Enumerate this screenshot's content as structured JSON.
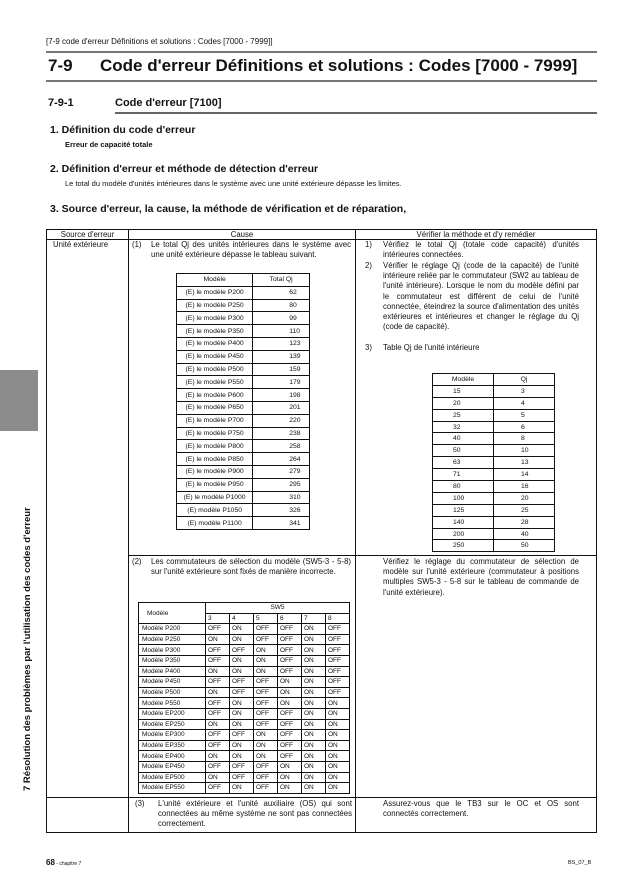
{
  "breadcrumb": "[7-9 code d'erreur Définitions et solutions : Codes [7000 - 7999]]",
  "section": {
    "number": "7-9",
    "title": "Code d'erreur Définitions et solutions : Codes [7000 - 7999]"
  },
  "subsection": {
    "number": "7-9-1",
    "title": "Code d'erreur [7100]"
  },
  "items": [
    {
      "heading": "1.  Définition du code d'erreur",
      "text": "Erreur de capacité totale"
    },
    {
      "heading": "2.  Définition d'erreur et méthode de détection d'erreur",
      "text": "Le total du modèle d'unités intérieures dans le système avec une unité extérieure dépasse les limites."
    },
    {
      "heading": "3.  Source d'erreur, la cause, la méthode de vérification et de réparation,"
    }
  ],
  "side_tab": "7 Résolution des problèmes par l'utilisation des codes d'erreur",
  "table": {
    "headers": [
      "Source d'erreur",
      "Cause",
      "Vérifier la méthode et d'y remédier"
    ],
    "source": "Unité extérieure",
    "cause1": {
      "num": "(1)",
      "text": "Le total Qj des unités intérieures dans le système avec une unité extérieure dépasse le tableau suivant."
    },
    "qj_total": {
      "headers": [
        "Modèle",
        "Total Qj"
      ],
      "rows": [
        [
          "(E) le modèle P200",
          "62"
        ],
        [
          "(E) le modèle P250",
          "80"
        ],
        [
          "(E) le modèle P300",
          "99"
        ],
        [
          "(E) le modèle P350",
          "110"
        ],
        [
          "(E) le modèle P400",
          "123"
        ],
        [
          "(E) le modèle P450",
          "139"
        ],
        [
          "(E) le modèle P500",
          "159"
        ],
        [
          "(E) le modèle P550",
          "179"
        ],
        [
          "(E) le modèle P600",
          "198"
        ],
        [
          "(E) le modèle P650",
          "201"
        ],
        [
          "(E) le modèle P700",
          "220"
        ],
        [
          "(E) le modèle P750",
          "238"
        ],
        [
          "(E) le modèle P800",
          "258"
        ],
        [
          "(E) le modèle P850",
          "264"
        ],
        [
          "(E) le modèle P900",
          "279"
        ],
        [
          "(E) le modèle P950",
          "295"
        ],
        [
          "(E) le modèle P1000",
          "310"
        ],
        [
          "(E) modèle P1050",
          "326"
        ],
        [
          "(E) modèle P1100",
          "341"
        ]
      ]
    },
    "remedy1": [
      {
        "num": "1)",
        "text": "Vérifiez le total Qj (totale code capacité) d'unités intérieures connectées."
      },
      {
        "num": "2)",
        "text": "Vérifier le réglage Qj (code de la capacité) de l'unité intérieure reliée par le commutateur (SW2 au tableau de l'unité intérieure). Lorsque le nom du modèle défini par le commutateur est différent de celui de l'unité connectée, éteindrez la source d'alimentation des unités extérieures et intérieures et changer le réglage du Qj (code de capacité)."
      },
      {
        "num": "3)",
        "text": "Table Qj de l'unité intérieure"
      }
    ],
    "qj_indoor": {
      "headers": [
        "Modèle",
        "Qj"
      ],
      "rows": [
        [
          "15",
          "3"
        ],
        [
          "20",
          "4"
        ],
        [
          "25",
          "5"
        ],
        [
          "32",
          "6"
        ],
        [
          "40",
          "8"
        ],
        [
          "50",
          "10"
        ],
        [
          "63",
          "13"
        ],
        [
          "71",
          "14"
        ],
        [
          "80",
          "16"
        ],
        [
          "100",
          "20"
        ],
        [
          "125",
          "25"
        ],
        [
          "140",
          "28"
        ],
        [
          "200",
          "40"
        ],
        [
          "250",
          "50"
        ]
      ]
    },
    "cause2": {
      "num": "(2)",
      "text": "Les commutateurs de sélection du modèle (SW5-3 - 5-8) sur l'unité extérieure sont fixés de manière incorrecte."
    },
    "sw5": {
      "model_header": "Modèle",
      "group_header": "SW5",
      "switches": [
        "3",
        "4",
        "5",
        "6",
        "7",
        "8"
      ],
      "rows": [
        [
          "Modèle P200",
          "OFF",
          "ON",
          "OFF",
          "OFF",
          "ON",
          "OFF"
        ],
        [
          "Modèle P250",
          "ON",
          "ON",
          "OFF",
          "OFF",
          "ON",
          "OFF"
        ],
        [
          "Modèle P300",
          "OFF",
          "OFF",
          "ON",
          "OFF",
          "ON",
          "OFF"
        ],
        [
          "Modèle P350",
          "OFF",
          "ON",
          "ON",
          "OFF",
          "ON",
          "OFF"
        ],
        [
          "Modèle P400",
          "ON",
          "ON",
          "ON",
          "OFF",
          "ON",
          "OFF"
        ],
        [
          "Modèle P450",
          "OFF",
          "OFF",
          "OFF",
          "ON",
          "ON",
          "OFF"
        ],
        [
          "Modèle P500",
          "ON",
          "OFF",
          "OFF",
          "ON",
          "ON",
          "OFF"
        ],
        [
          "Modèle P550",
          "OFF",
          "ON",
          "OFF",
          "ON",
          "ON",
          "ON"
        ],
        [
          "Modèle EP200",
          "OFF",
          "ON",
          "OFF",
          "OFF",
          "ON",
          "ON"
        ],
        [
          "Modèle EP250",
          "ON",
          "ON",
          "OFF",
          "OFF",
          "ON",
          "ON"
        ],
        [
          "Modèle EP300",
          "OFF",
          "OFF",
          "ON",
          "OFF",
          "ON",
          "ON"
        ],
        [
          "Modèle EP350",
          "OFF",
          "ON",
          "ON",
          "OFF",
          "ON",
          "ON"
        ],
        [
          "Modèle EP400",
          "ON",
          "ON",
          "ON",
          "OFF",
          "ON",
          "ON"
        ],
        [
          "Modèle EP450",
          "OFF",
          "OFF",
          "OFF",
          "ON",
          "ON",
          "ON"
        ],
        [
          "Modèle EP500",
          "ON",
          "OFF",
          "OFF",
          "ON",
          "ON",
          "ON"
        ],
        [
          "Modèle EP550",
          "OFF",
          "ON",
          "OFF",
          "ON",
          "ON",
          "ON"
        ]
      ]
    },
    "remedy2": "Vérifiez le réglage du commutateur de sélection de modèle sur l'unité extérieure (commutateur à positions multiples SW5-3 - 5-8 sur le tableau de commande de l'unité extérieure).",
    "cause3": {
      "num": "(3)",
      "text": "L'unité extérieure et l'unité auxiliaire (OS) qui sont connectées au même système ne sont pas connectées correctement."
    },
    "remedy3": "Assurez-vous que le TB3 sur le OC et OS sont connectés correctement."
  },
  "footer": {
    "page": "68",
    "chapter": " - chapitre 7",
    "code": "BS_07_B"
  }
}
